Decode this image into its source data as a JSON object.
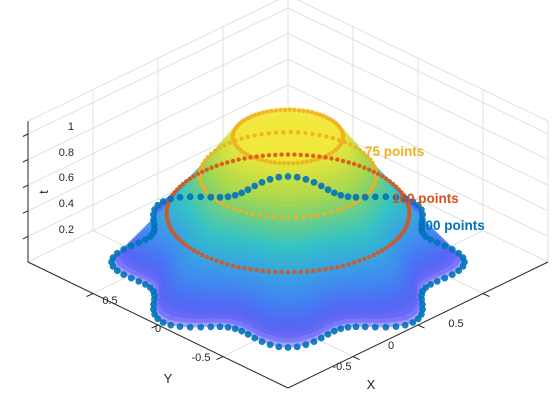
{
  "chart_data": {
    "type": "surface3d",
    "title": "",
    "xlabel": "X",
    "ylabel": "Y",
    "zlabel": "t",
    "xlim": [
      -1,
      1
    ],
    "ylim": [
      -1,
      1
    ],
    "zlim": [
      0,
      1
    ],
    "x_ticks": [
      "-0.5",
      "0",
      "0.5"
    ],
    "y_ticks": [
      "0.5",
      "0",
      "-0.5"
    ],
    "z_ticks": [
      "0.2",
      "0.4",
      "0.6",
      "0.8",
      "1"
    ],
    "grid": true,
    "colormap": "parula",
    "surface": {
      "description_values": {
        "base_radius": 0.88,
        "lobes": 8,
        "lobe_amplitude": 0.08,
        "top_radius": 0.3,
        "t_range": [
          0,
          1
        ]
      }
    },
    "series": [
      {
        "name": "75 points",
        "points": 75,
        "t": 0.98,
        "radius": 0.3,
        "color": "#EDB120"
      },
      {
        "name": "75 points",
        "points": 75,
        "t": 0.68,
        "radius": 0.48,
        "color": "#EDB120"
      },
      {
        "name": "160 points",
        "points": 160,
        "t": 0.38,
        "radius": 0.66,
        "color": "#D95319"
      },
      {
        "name": "300 points",
        "points": 300,
        "t": 0.0,
        "radius": 0.88,
        "color": "#0072BD"
      }
    ],
    "annotations": [
      {
        "text": "75 points",
        "color": "#EDB120"
      },
      {
        "text": "160 points",
        "color": "#D95319"
      },
      {
        "text": "300 points",
        "color": "#0072BD"
      }
    ]
  }
}
